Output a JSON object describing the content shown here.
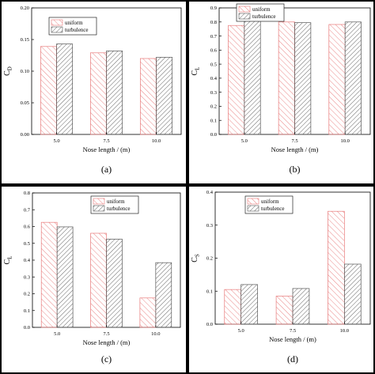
{
  "colors": {
    "uniform": "#e87a7a",
    "turbulence": "#555555",
    "background": "#000000",
    "panel": "#ffffff"
  },
  "chart_data": [
    {
      "panel_label": "(a)",
      "type": "bar",
      "categories": [
        "5.0",
        "7.5",
        "10.0"
      ],
      "series": [
        {
          "name": "uniform",
          "values": [
            0.139,
            0.129,
            0.12
          ]
        },
        {
          "name": "turbulence",
          "values": [
            0.143,
            0.132,
            0.122
          ]
        }
      ],
      "xlabel": "Nose length / (m)",
      "ylabel_main": "C",
      "ylabel_sub": "D",
      "ylim": [
        0,
        0.2
      ],
      "yticks": [
        "0.00",
        "0.05",
        "0.10",
        "0.15",
        "0.20"
      ],
      "ytick_values": [
        0,
        0.05,
        0.1,
        0.15,
        0.2
      ],
      "legend": "top-left",
      "grid": false
    },
    {
      "panel_label": "(b)",
      "type": "bar",
      "categories": [
        "5.0",
        "7.5",
        "10.0"
      ],
      "series": [
        {
          "name": "uniform",
          "values": [
            0.775,
            0.8,
            0.782
          ]
        },
        {
          "name": "turbulence",
          "values": [
            0.812,
            0.795,
            0.8
          ]
        }
      ],
      "xlabel": "Nose length / (m)",
      "ylabel_main": "C",
      "ylabel_sub": "L",
      "ylim": [
        0,
        0.9
      ],
      "yticks": [
        "0.0",
        "0.1",
        "0.2",
        "0.3",
        "0.4",
        "0.5",
        "0.6",
        "0.7",
        "0.8",
        "0.9"
      ],
      "ytick_values": [
        0,
        0.1,
        0.2,
        0.3,
        0.4,
        0.5,
        0.6,
        0.7,
        0.8,
        0.9
      ],
      "legend": "top-left",
      "grid": false
    },
    {
      "panel_label": "(c)",
      "type": "bar",
      "categories": [
        "5.0",
        "7.5",
        "10.0"
      ],
      "series": [
        {
          "name": "uniform",
          "values": [
            0.625,
            0.56,
            0.175
          ]
        },
        {
          "name": "turbulence",
          "values": [
            0.598,
            0.525,
            0.385
          ]
        }
      ],
      "xlabel": "Nose length / (m)",
      "ylabel_main": "C",
      "ylabel_sub": "L",
      "ylim": [
        0,
        0.8
      ],
      "yticks": [
        "0.0",
        "0.1",
        "0.2",
        "0.3",
        "0.4",
        "0.5",
        "0.6",
        "0.7",
        "0.8"
      ],
      "ytick_values": [
        0,
        0.1,
        0.2,
        0.3,
        0.4,
        0.5,
        0.6,
        0.7,
        0.8
      ],
      "legend": "top-center",
      "grid": false
    },
    {
      "panel_label": "(d)",
      "type": "bar",
      "categories": [
        "5.0",
        "7.5",
        "10.0"
      ],
      "series": [
        {
          "name": "uniform",
          "values": [
            0.105,
            0.085,
            0.342
          ]
        },
        {
          "name": "turbulence",
          "values": [
            0.12,
            0.108,
            0.182
          ]
        }
      ],
      "xlabel": "Nose length / (m)",
      "ylabel_main": "C",
      "ylabel_sub": "S",
      "ylim": [
        0,
        0.4
      ],
      "yticks": [
        "0.0",
        "0.1",
        "0.2",
        "0.3",
        "0.4"
      ],
      "ytick_values": [
        0,
        0.1,
        0.2,
        0.3,
        0.4
      ],
      "legend": "top-center",
      "grid": false
    }
  ]
}
